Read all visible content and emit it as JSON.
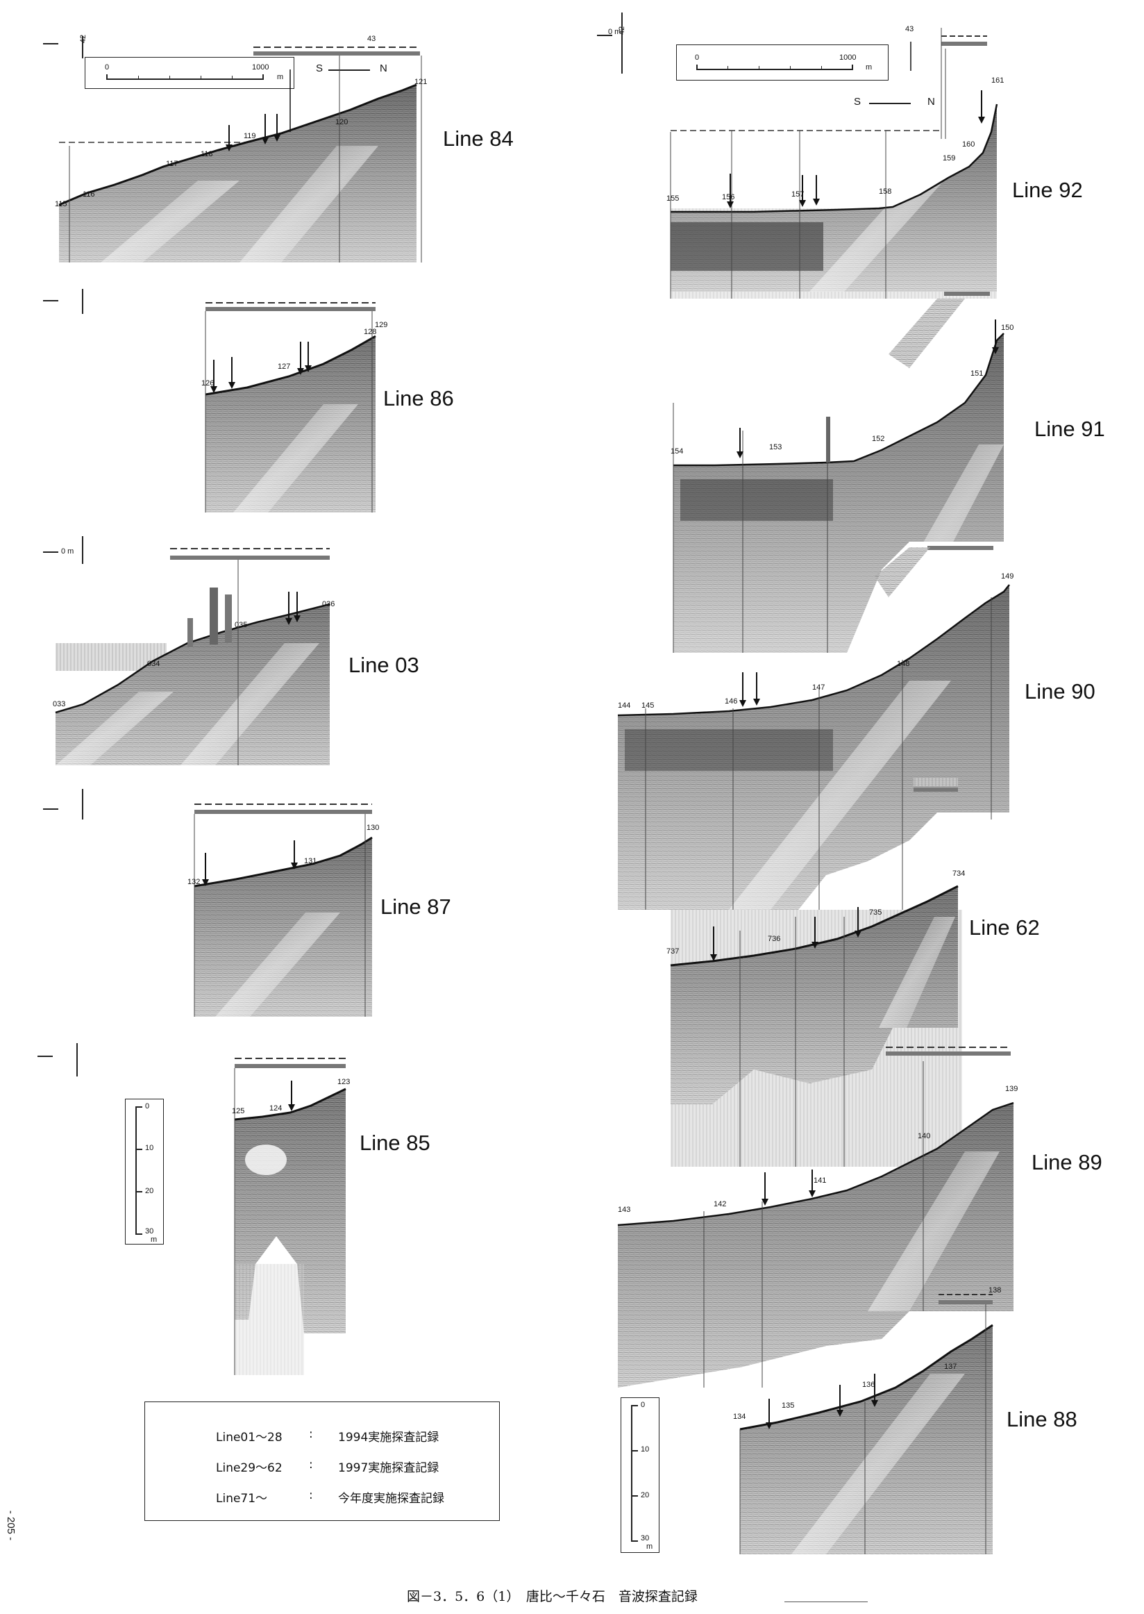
{
  "document": {
    "caption": "図－3．5．6（1）　唐比～千々石　音波探査記録",
    "page_number": "- 205 -",
    "zero_mark": "0 m"
  },
  "horizontal_scale": {
    "left_label": "0",
    "right_label": "1000",
    "unit": "m"
  },
  "direction": {
    "south": "S",
    "north": "N"
  },
  "vertical_scale": {
    "ticks": [
      "0",
      "10",
      "20",
      "30"
    ],
    "unit": "m"
  },
  "legend": [
    {
      "range": "Line01～28",
      "sep": ":",
      "desc": "1994実施探査記録"
    },
    {
      "range": "Line29～62",
      "sep": ":",
      "desc": "1997実施探査記録"
    },
    {
      "range": "Line71～",
      "sep": ":",
      "desc": "今年度実施探査記録"
    }
  ],
  "profiles": [
    {
      "name": "Line 84",
      "fixes": [
        "42",
        "43",
        "115",
        "116",
        "117",
        "118",
        "119",
        "120",
        "121"
      ]
    },
    {
      "name": "Line 86",
      "fixes": [
        "126",
        "127",
        "128",
        "129"
      ]
    },
    {
      "name": "Line 03",
      "fixes": [
        "033",
        "034",
        "035",
        "036"
      ]
    },
    {
      "name": "Line 87",
      "fixes": [
        "130",
        "131",
        "132"
      ]
    },
    {
      "name": "Line 85",
      "fixes": [
        "123",
        "124",
        "125"
      ]
    },
    {
      "name": "Line 92",
      "fixes": [
        "42",
        "43",
        "155",
        "156",
        "157",
        "158",
        "159",
        "160",
        "161"
      ]
    },
    {
      "name": "Line 91",
      "fixes": [
        "150",
        "151",
        "152",
        "153",
        "154"
      ]
    },
    {
      "name": "Line 90",
      "fixes": [
        "144",
        "145",
        "146",
        "147",
        "148",
        "149"
      ]
    },
    {
      "name": "Line 62",
      "fixes": [
        "734",
        "735",
        "736",
        "737"
      ]
    },
    {
      "name": "Line 89",
      "fixes": [
        "139",
        "140",
        "141",
        "142",
        "143"
      ]
    },
    {
      "name": "Line 88",
      "fixes": [
        "134",
        "135",
        "136",
        "137",
        "138"
      ]
    }
  ]
}
